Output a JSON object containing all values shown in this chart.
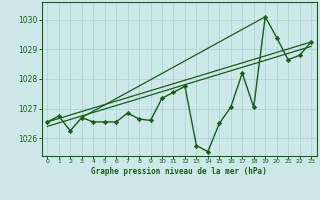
{
  "title": "Graphe pression niveau de la mer (hPa)",
  "bg_color": "#cce8e8",
  "grid_color": "#aad0d0",
  "line_color": "#1a5c1a",
  "xlim": [
    -0.5,
    23.5
  ],
  "ylim": [
    1025.4,
    1030.6
  ],
  "yticks": [
    1026,
    1027,
    1028,
    1029,
    1030
  ],
  "xticks": [
    0,
    1,
    2,
    3,
    4,
    5,
    6,
    7,
    8,
    9,
    10,
    11,
    12,
    13,
    14,
    15,
    16,
    17,
    18,
    19,
    20,
    21,
    22,
    23
  ],
  "series_main": {
    "x": [
      0,
      1,
      2,
      3,
      4,
      5,
      6,
      7,
      8,
      9,
      10,
      11,
      12,
      13,
      14,
      15,
      16,
      17,
      18,
      19,
      20,
      21,
      22,
      23
    ],
    "y": [
      1026.55,
      1026.75,
      1026.25,
      1026.7,
      1026.55,
      1026.55,
      1026.55,
      1026.85,
      1026.65,
      1026.6,
      1027.35,
      1027.55,
      1027.75,
      1025.75,
      1025.55,
      1026.5,
      1027.05,
      1028.2,
      1027.05,
      1030.1,
      1029.4,
      1028.65,
      1028.8,
      1029.25
    ]
  },
  "trend_line1": {
    "x": [
      0,
      23
    ],
    "y": [
      1026.55,
      1029.25
    ]
  },
  "trend_line2": {
    "x": [
      0,
      23
    ],
    "y": [
      1026.55,
      1029.25
    ]
  },
  "trend_line3": {
    "x": [
      3,
      19
    ],
    "y": [
      1026.7,
      1030.1
    ]
  }
}
